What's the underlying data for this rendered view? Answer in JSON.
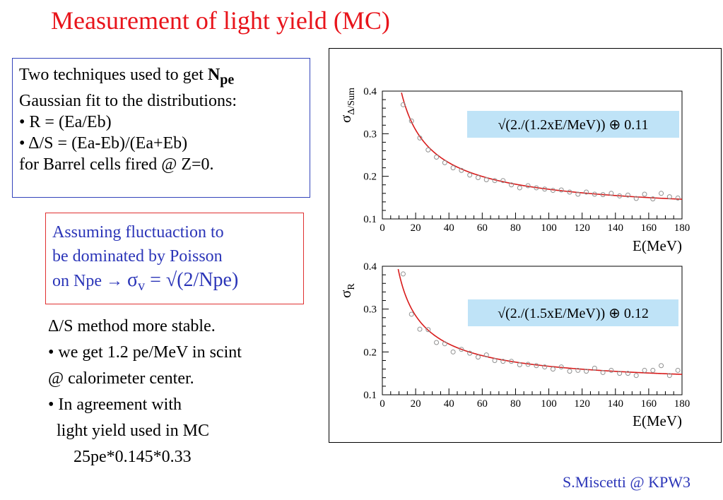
{
  "title": "Measurement of light yield (MC)",
  "box1": {
    "line1_prefix": "Two techniques used to  get ",
    "line1_bold": "N",
    "line1_sub": "pe",
    "line2": "Gaussian fit to the distributions:",
    "line3": "• R = (Ea/Eb)",
    "line4": "• Δ/S = (Ea-Eb)/(Ea+Eb)",
    "line5": "for Barrel cells fired @ Z=0."
  },
  "box2": {
    "line1": "Assuming fluctuaction to",
    "line2": "be dominated by Poisson",
    "line3_prefix": "on Npe → ",
    "line3_sigma": "σ",
    "line3_sub": "v",
    "line3_suffix": " = √(2/Npe)"
  },
  "notes": {
    "line1": "Δ/S method more stable.",
    "line2": "• we get 1.2 pe/MeV in scint",
    "line3": "@ calorimeter center.",
    "line4": "• In agreement with",
    "line5": "light yield used in MC",
    "line6": "25pe*0.145*0.33"
  },
  "footer": "S.Miscetti @ KPW3",
  "colors": {
    "title": "#e8141b",
    "blue_text": "#2b35b8",
    "fit_curve": "#d81b1b",
    "formula_bg": "#bfe3f7",
    "points": "#909090"
  },
  "chart_data": [
    {
      "type": "scatter",
      "ylabel_main": "σ",
      "ylabel_sub": "Δ/Sum",
      "xlabel": "E(MeV)",
      "xlim": [
        0,
        180
      ],
      "ylim": [
        0.1,
        0.4
      ],
      "xticks": [
        0,
        20,
        40,
        60,
        80,
        100,
        120,
        140,
        160,
        180
      ],
      "yticks": [
        0.1,
        0.2,
        0.3,
        0.4
      ],
      "formula": "√(2./(1.2xE/MeV)) ⊕ 0.11",
      "fit": {
        "npe_per_mev": 1.2,
        "constant": 0.11
      },
      "series": [
        {
          "x": [
            12.5,
            17.5,
            22.5,
            27.5,
            32.5,
            37.5,
            42.5,
            47.5,
            52.5,
            57.5,
            62.5,
            67.5,
            72.5,
            77.5,
            82.5,
            87.5,
            92.5,
            97.5,
            102.5,
            107.5,
            112.5,
            117.5,
            122.5,
            127.5,
            132.5,
            137.5,
            142.5,
            147.5,
            152.5,
            157.5,
            162.5,
            167.5,
            172.5,
            177.5
          ],
          "y": [
            0.368,
            0.33,
            0.29,
            0.262,
            0.245,
            0.232,
            0.22,
            0.214,
            0.203,
            0.197,
            0.192,
            0.19,
            0.19,
            0.18,
            0.173,
            0.178,
            0.173,
            0.17,
            0.167,
            0.168,
            0.163,
            0.158,
            0.163,
            0.158,
            0.157,
            0.16,
            0.154,
            0.156,
            0.148,
            0.158,
            0.147,
            0.16,
            0.152,
            0.149
          ]
        }
      ]
    },
    {
      "type": "scatter",
      "ylabel_main": "σ",
      "ylabel_sub": "R",
      "xlabel": "E(MeV)",
      "xlim": [
        0,
        180
      ],
      "ylim": [
        0.1,
        0.4
      ],
      "xticks": [
        0,
        20,
        40,
        60,
        80,
        100,
        120,
        140,
        160,
        180
      ],
      "yticks": [
        0.1,
        0.2,
        0.3,
        0.4
      ],
      "formula": "√(2./(1.5xE/MeV)) ⊕ 0.12",
      "fit": {
        "npe_per_mev": 1.5,
        "constant": 0.12
      },
      "series": [
        {
          "x": [
            12.5,
            17.5,
            22.5,
            27.5,
            32.5,
            37.5,
            42.5,
            47.5,
            52.5,
            57.5,
            62.5,
            67.5,
            72.5,
            77.5,
            82.5,
            87.5,
            92.5,
            97.5,
            102.5,
            107.5,
            112.5,
            117.5,
            122.5,
            127.5,
            132.5,
            137.5,
            142.5,
            147.5,
            152.5,
            157.5,
            162.5,
            167.5,
            172.5,
            177.5
          ],
          "y": [
            0.382,
            0.288,
            0.253,
            0.252,
            0.222,
            0.219,
            0.2,
            0.206,
            0.197,
            0.188,
            0.193,
            0.18,
            0.178,
            0.178,
            0.17,
            0.171,
            0.168,
            0.165,
            0.16,
            0.165,
            0.155,
            0.157,
            0.155,
            0.162,
            0.152,
            0.157,
            0.15,
            0.15,
            0.145,
            0.157,
            0.157,
            0.168,
            0.145,
            0.157
          ]
        }
      ]
    }
  ]
}
